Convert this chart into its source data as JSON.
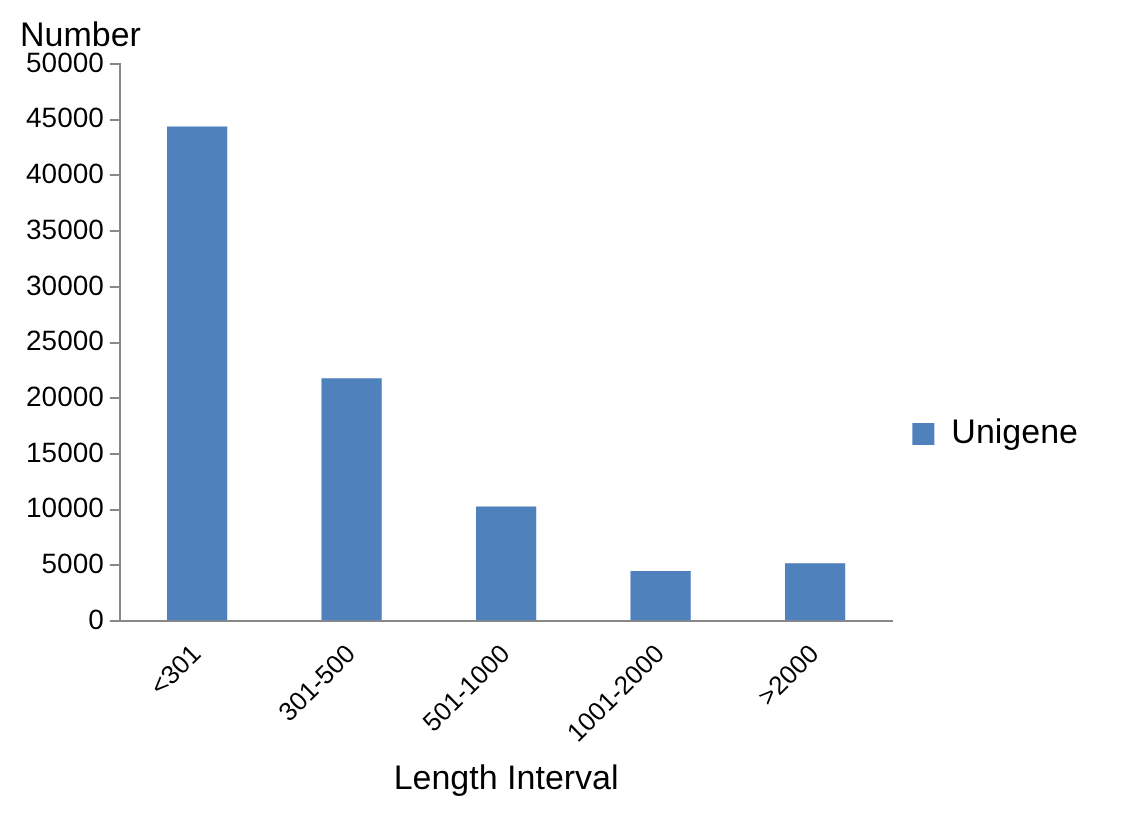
{
  "chart_data": {
    "type": "bar",
    "xlabel": "Length Interval",
    "ylabel": "Number",
    "categories": [
      "<301",
      "301-500",
      "501-1000",
      "1001-2000",
      ">2000"
    ],
    "series": [
      {
        "name": "Unigene",
        "color": "#4f81bd",
        "values": [
          44400,
          21800,
          10300,
          4500,
          5200
        ]
      }
    ],
    "ylim": [
      0,
      50000
    ],
    "yticks": [
      0,
      5000,
      10000,
      15000,
      20000,
      25000,
      30000,
      35000,
      40000,
      45000,
      50000
    ],
    "grid": false,
    "legend": "right"
  }
}
